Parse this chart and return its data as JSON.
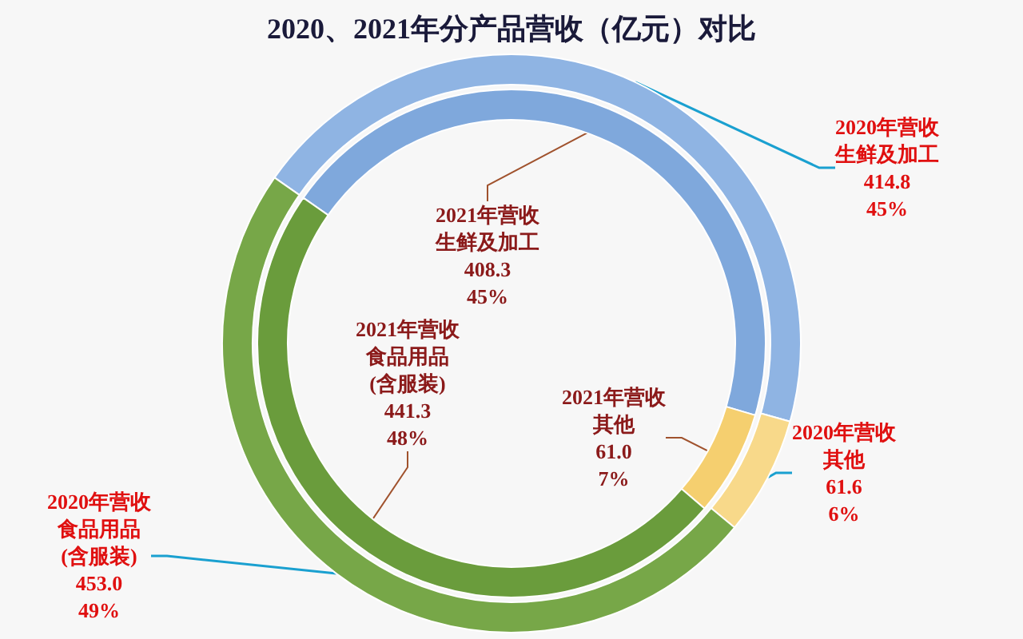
{
  "chart_data": {
    "type": "donut",
    "title": "2020、2021年分产品营收（亿元）对比",
    "categories": [
      "生鲜及加工",
      "其他",
      "食品用品(含服装)"
    ],
    "series": [
      {
        "name": "2020年营收",
        "colors": [
          "#8fb4e3",
          "#f8d98a",
          "#77a748"
        ],
        "values": [
          414.8,
          61.6,
          453.0
        ],
        "value_labels": [
          "414.8\n45%",
          "61.6\n6%",
          "453.0\n49%"
        ]
      },
      {
        "name": "2021年营收",
        "colors": [
          "#7fa8dc",
          "#f5cf6f",
          "#6a9c3c"
        ],
        "values": [
          408.3,
          61.0,
          441.3
        ],
        "value_labels": [
          "408.3\n45%",
          "61.0\n7%",
          "441.3\n48%"
        ]
      }
    ],
    "legend": false
  }
}
